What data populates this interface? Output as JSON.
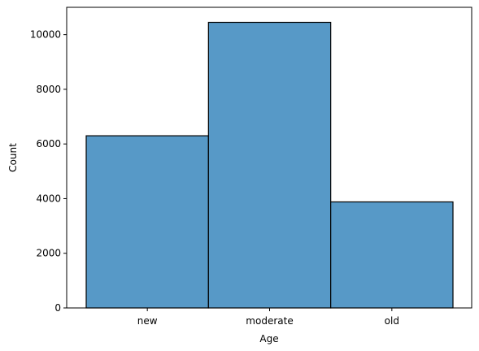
{
  "chart_data": {
    "type": "bar",
    "title": "",
    "xlabel": "Age",
    "ylabel": "Count",
    "categories": [
      "new",
      "moderate",
      "old"
    ],
    "values": [
      6300,
      10450,
      3880
    ],
    "ylim": [
      0,
      11000
    ],
    "yticks": [
      0,
      2000,
      4000,
      6000,
      8000,
      10000
    ],
    "ytick_labels": [
      "0",
      "2000",
      "4000",
      "6000",
      "8000",
      "10000"
    ],
    "grid": false,
    "legend": "none",
    "bar_color": "#5799c7",
    "edge_color": "#000000"
  }
}
